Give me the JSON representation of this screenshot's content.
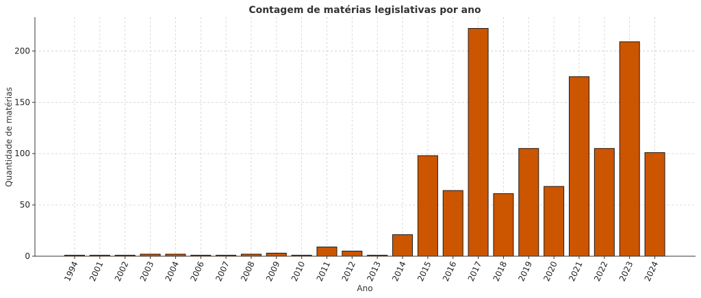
{
  "chart_data": {
    "type": "bar",
    "title": "Contagem de matérias legislativas por ano",
    "xlabel": "Ano",
    "ylabel": "Quantidade de matérias",
    "categories": [
      "1994",
      "2001",
      "2002",
      "2003",
      "2004",
      "2006",
      "2007",
      "2008",
      "2009",
      "2010",
      "2011",
      "2012",
      "2013",
      "2014",
      "2015",
      "2016",
      "2017",
      "2018",
      "2019",
      "2020",
      "2021",
      "2022",
      "2023",
      "2024"
    ],
    "values": [
      1,
      1,
      1,
      2,
      2,
      1,
      1,
      2,
      3,
      1,
      9,
      5,
      1,
      21,
      98,
      64,
      222,
      61,
      105,
      68,
      175,
      105,
      209,
      101
    ],
    "ylim": [
      0,
      233
    ],
    "yticks": [
      0,
      50,
      100,
      150,
      200
    ],
    "grid": true,
    "bar_color": "#cc5500",
    "bar_edge_color": "#1a1a1a"
  }
}
